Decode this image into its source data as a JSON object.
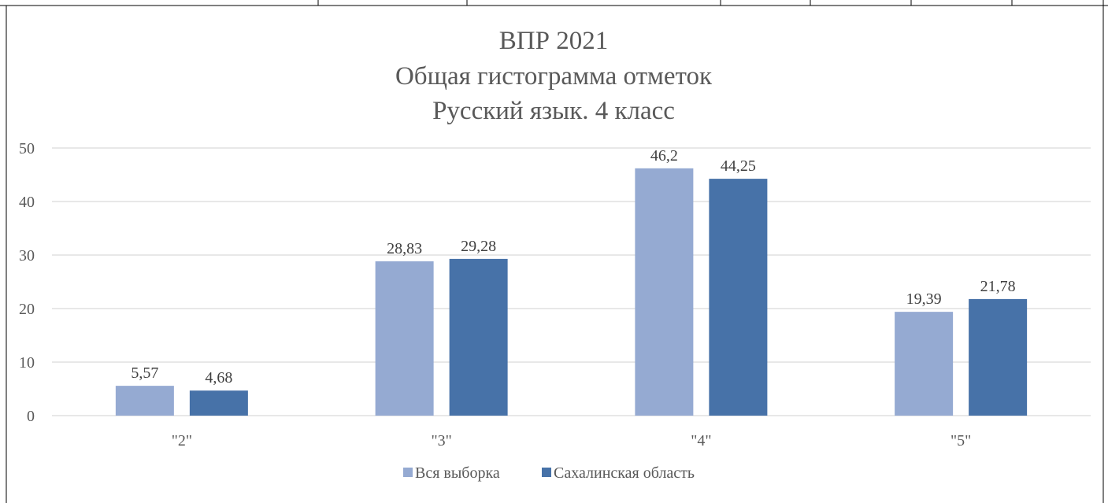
{
  "chart_data": {
    "type": "bar",
    "title": [
      "ВПР 2021",
      "Общая гистограмма отметок",
      "Русский язык. 4 класс"
    ],
    "categories": [
      "\"2\"",
      "\"3\"",
      "\"4\"",
      "\"5\""
    ],
    "series": [
      {
        "name": "Вся выборка",
        "values": [
          5.57,
          28.83,
          46.2,
          19.39
        ],
        "labels": [
          "5,57",
          "28,83",
          "46,2",
          "19,39"
        ],
        "color": "#95aad2"
      },
      {
        "name": "Сахалинская область",
        "values": [
          4.68,
          29.28,
          44.25,
          21.78
        ],
        "labels": [
          "4,68",
          "29,28",
          "44,25",
          "21,78"
        ],
        "color": "#4772a8"
      }
    ],
    "yticks": [
      "0",
      "10",
      "20",
      "30",
      "40",
      "50"
    ],
    "ylim": [
      0,
      50
    ],
    "grid": true,
    "legend": "bottom",
    "gridColor": "#d9d9d9",
    "tableBorderColor": "#000000"
  }
}
